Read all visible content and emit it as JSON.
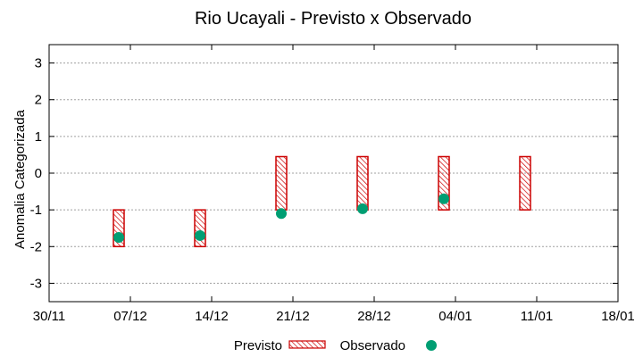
{
  "chart_data": {
    "type": "scatter",
    "title": "Rio Ucayali - Previsto x Observado",
    "xlabel": "",
    "ylabel": "Anomalia Categorizada",
    "ylim": [
      -3.5,
      3.5
    ],
    "yticks": [
      -3,
      -2,
      -1,
      0,
      1,
      2,
      3
    ],
    "xlim": [
      "30/11",
      "18/01"
    ],
    "xtick_labels": [
      "30/11",
      "07/12",
      "14/12",
      "21/12",
      "28/12",
      "04/01",
      "11/01",
      "18/01"
    ],
    "grid": true,
    "colors": {
      "previsto": "#cc0000",
      "observado": "#009e73",
      "grid": "#a0a0a0"
    },
    "series": [
      {
        "name": "Previsto",
        "kind": "range-bar",
        "values": [
          {
            "x": "06/12",
            "low": -2.0,
            "high": -1.0
          },
          {
            "x": "13/12",
            "low": -2.0,
            "high": -1.0
          },
          {
            "x": "20/12",
            "low": -1.0,
            "high": 0.45
          },
          {
            "x": "27/12",
            "low": -1.0,
            "high": 0.45
          },
          {
            "x": "03/01",
            "low": -1.0,
            "high": 0.45
          },
          {
            "x": "10/01",
            "low": -1.0,
            "high": 0.45
          }
        ]
      },
      {
        "name": "Observado",
        "kind": "points",
        "values": [
          {
            "x": "06/12",
            "y": -1.75
          },
          {
            "x": "13/12",
            "y": -1.7
          },
          {
            "x": "20/12",
            "y": -1.1
          },
          {
            "x": "27/12",
            "y": -0.97
          },
          {
            "x": "03/01",
            "y": -0.7
          }
        ]
      }
    ],
    "legend": {
      "position": "bottom-center",
      "entries": [
        "Previsto",
        "Observado"
      ]
    }
  }
}
